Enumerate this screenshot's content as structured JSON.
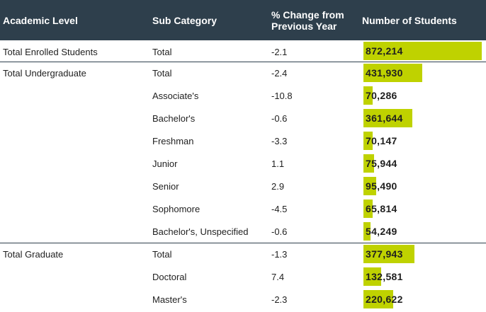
{
  "headers": {
    "level": "Academic Level",
    "sub": "Sub Category",
    "change_line1": "% Change from",
    "change_line2": "Previous Year",
    "students": "Number of Students"
  },
  "max_students": 872214,
  "rows": [
    {
      "level": "Total Enrolled Students",
      "sub": "Total",
      "change": "-2.1",
      "students": "872,214",
      "value": 872214
    },
    {
      "level": "Total Undergraduate",
      "sub": "Total",
      "change": "-2.4",
      "students": "431,930",
      "value": 431930
    },
    {
      "level": "",
      "sub": "Associate's",
      "change": "-10.8",
      "students": "70,286",
      "value": 70286
    },
    {
      "level": "",
      "sub": "Bachelor's",
      "change": "-0.6",
      "students": "361,644",
      "value": 361644
    },
    {
      "level": "",
      "sub": "Freshman",
      "change": "-3.3",
      "students": "70,147",
      "value": 70147
    },
    {
      "level": "",
      "sub": "Junior",
      "change": "1.1",
      "students": "75,944",
      "value": 75944
    },
    {
      "level": "",
      "sub": "Senior",
      "change": "2.9",
      "students": "95,490",
      "value": 95490
    },
    {
      "level": "",
      "sub": "Sophomore",
      "change": "-4.5",
      "students": "65,814",
      "value": 65814
    },
    {
      "level": "",
      "sub": "Bachelor's, Unspecified",
      "change": "-0.6",
      "students": "54,249",
      "value": 54249
    },
    {
      "level": "Total Graduate",
      "sub": "Total",
      "change": "-1.3",
      "students": "377,943",
      "value": 377943
    },
    {
      "level": "",
      "sub": "Doctoral",
      "change": "7.4",
      "students": "132,581",
      "value": 132581
    },
    {
      "level": "",
      "sub": "Master's",
      "change": "-2.3",
      "students": "220,622",
      "value": 220622
    }
  ],
  "colors": {
    "header_bg": "#2e3f4c",
    "bar": "#bfd200"
  }
}
